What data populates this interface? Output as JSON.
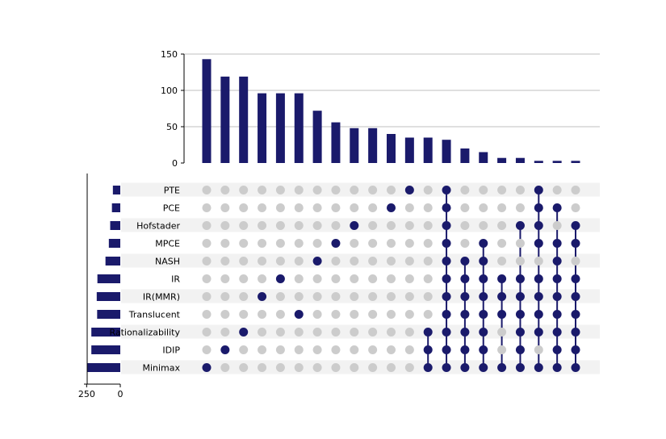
{
  "chart_data": {
    "type": "upset",
    "colors": {
      "mark": "#1a1a6b",
      "inactive": "#cccccc",
      "stripe": "#f2f2f2",
      "grid": "#bfbfbf"
    },
    "intersection_axis": {
      "ylim": [
        0,
        150
      ],
      "ticks": [
        "0",
        "50",
        "100",
        "150"
      ]
    },
    "set_size_axis": {
      "xlim": [
        0,
        270
      ],
      "ticks": [
        "250",
        "0"
      ]
    },
    "sets": [
      {
        "name": "PTE",
        "size": 55
      },
      {
        "name": "PCE",
        "size": 62
      },
      {
        "name": "Hofstader",
        "size": 75
      },
      {
        "name": "MPCE",
        "size": 85
      },
      {
        "name": "NASH",
        "size": 110
      },
      {
        "name": "IR",
        "size": 170
      },
      {
        "name": "IR(MMR)",
        "size": 175
      },
      {
        "name": "Translucent",
        "size": 172
      },
      {
        "name": "Rationalizability",
        "size": 215
      },
      {
        "name": "IDIP",
        "size": 215
      },
      {
        "name": "Minimax",
        "size": 245
      }
    ],
    "intersections": [
      {
        "size": 143,
        "members": [
          "Minimax"
        ]
      },
      {
        "size": 119,
        "members": [
          "IDIP"
        ]
      },
      {
        "size": 119,
        "members": [
          "Rationalizability"
        ]
      },
      {
        "size": 96,
        "members": [
          "IR(MMR)"
        ]
      },
      {
        "size": 96,
        "members": [
          "IR"
        ]
      },
      {
        "size": 96,
        "members": [
          "Translucent"
        ]
      },
      {
        "size": 72,
        "members": [
          "NASH"
        ]
      },
      {
        "size": 56,
        "members": [
          "MPCE"
        ]
      },
      {
        "size": 48,
        "members": [
          "Hofstader"
        ]
      },
      {
        "size": 48,
        "members": []
      },
      {
        "size": 40,
        "members": [
          "PCE"
        ]
      },
      {
        "size": 35,
        "members": [
          "PTE"
        ]
      },
      {
        "size": 35,
        "members": [
          "Rationalizability",
          "IDIP",
          "Minimax"
        ]
      },
      {
        "size": 32,
        "members": [
          "PTE",
          "PCE",
          "Hofstader",
          "MPCE",
          "NASH",
          "IR",
          "IR(MMR)",
          "Translucent",
          "Rationalizability",
          "IDIP",
          "Minimax"
        ]
      },
      {
        "size": 20,
        "members": [
          "NASH",
          "IR",
          "IR(MMR)",
          "Translucent",
          "Rationalizability",
          "IDIP",
          "Minimax"
        ]
      },
      {
        "size": 15,
        "members": [
          "MPCE",
          "NASH",
          "IR",
          "IR(MMR)",
          "Translucent",
          "Rationalizability",
          "IDIP",
          "Minimax"
        ]
      },
      {
        "size": 7,
        "members": [
          "IR",
          "IR(MMR)",
          "Translucent",
          "Minimax"
        ]
      },
      {
        "size": 7,
        "members": [
          "Hofstader",
          "IR",
          "IR(MMR)",
          "Translucent",
          "Rationalizability",
          "IDIP",
          "Minimax"
        ]
      },
      {
        "size": 3,
        "members": [
          "PTE",
          "PCE",
          "Hofstader",
          "MPCE",
          "IR",
          "IR(MMR)",
          "Translucent",
          "Rationalizability",
          "Minimax"
        ]
      },
      {
        "size": 3,
        "members": [
          "PCE",
          "MPCE",
          "NASH",
          "IR",
          "IR(MMR)",
          "Translucent",
          "Rationalizability",
          "IDIP",
          "Minimax"
        ]
      },
      {
        "size": 3,
        "members": [
          "Hofstader",
          "MPCE",
          "IR",
          "IR(MMR)",
          "Translucent",
          "Rationalizability",
          "IDIP",
          "Minimax"
        ]
      }
    ]
  }
}
